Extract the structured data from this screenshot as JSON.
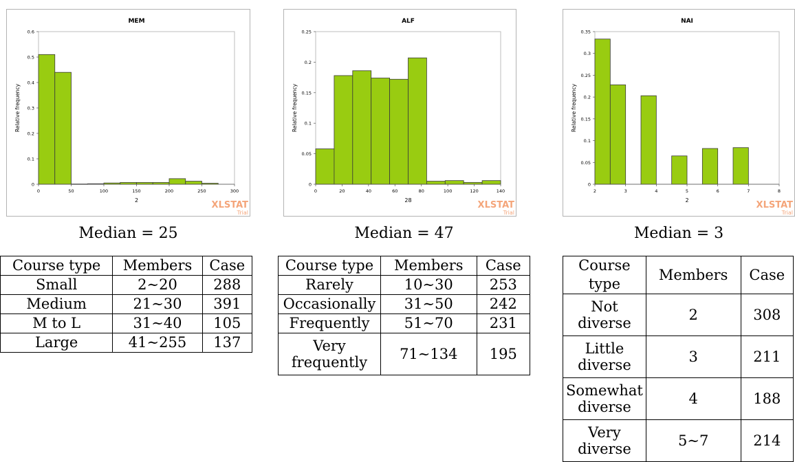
{
  "watermark": {
    "brand": "XLSTAT",
    "sub": "Trial"
  },
  "bar_fill": "#99cc11",
  "bar_stroke": "#3a3a3a",
  "watermark_color": "#f4a57a",
  "chart_data": [
    {
      "type": "bar",
      "title": "MEM",
      "xlabel": "2",
      "ylabel": "Relative frequency",
      "xlim": [
        0,
        300
      ],
      "ylim": [
        0,
        0.6
      ],
      "xticks": [
        "0",
        "50",
        "100",
        "150",
        "200",
        "250",
        "300"
      ],
      "yticks": [
        "0",
        "0.1",
        "0.2",
        "0.3",
        "0.4",
        "0.5",
        "0.6"
      ],
      "bins": [
        {
          "x0": 0,
          "x1": 25,
          "value": 0.51
        },
        {
          "x0": 25,
          "x1": 50,
          "value": 0.44
        },
        {
          "x0": 50,
          "x1": 75,
          "value": 0.001
        },
        {
          "x0": 75,
          "x1": 100,
          "value": 0.002
        },
        {
          "x0": 100,
          "x1": 125,
          "value": 0.005
        },
        {
          "x0": 125,
          "x1": 150,
          "value": 0.007
        },
        {
          "x0": 150,
          "x1": 175,
          "value": 0.007
        },
        {
          "x0": 175,
          "x1": 200,
          "value": 0.007
        },
        {
          "x0": 200,
          "x1": 225,
          "value": 0.022
        },
        {
          "x0": 225,
          "x1": 250,
          "value": 0.012
        },
        {
          "x0": 250,
          "x1": 275,
          "value": 0.004
        }
      ]
    },
    {
      "type": "bar",
      "title": "ALF",
      "xlabel": "28",
      "ylabel": "Relative frequency",
      "xlim": [
        0,
        140
      ],
      "ylim": [
        0,
        0.25
      ],
      "xticks": [
        "0",
        "20",
        "40",
        "60",
        "80",
        "100",
        "120",
        "140"
      ],
      "yticks": [
        "0",
        "0.05",
        "0.1",
        "0.15",
        "0.2",
        "0.25"
      ],
      "bins": [
        {
          "x0": 0,
          "x1": 14,
          "value": 0.058
        },
        {
          "x0": 14,
          "x1": 28,
          "value": 0.178
        },
        {
          "x0": 28,
          "x1": 42,
          "value": 0.186
        },
        {
          "x0": 42,
          "x1": 56,
          "value": 0.174
        },
        {
          "x0": 56,
          "x1": 70,
          "value": 0.172
        },
        {
          "x0": 70,
          "x1": 84,
          "value": 0.207
        },
        {
          "x0": 84,
          "x1": 98,
          "value": 0.005
        },
        {
          "x0": 98,
          "x1": 112,
          "value": 0.006
        },
        {
          "x0": 112,
          "x1": 126,
          "value": 0.003
        },
        {
          "x0": 126,
          "x1": 140,
          "value": 0.006
        }
      ]
    },
    {
      "type": "bar",
      "title": "NAI",
      "xlabel": "2",
      "ylabel": "Relative frequency",
      "xlim": [
        2,
        8
      ],
      "ylim": [
        0,
        0.35
      ],
      "xticks": [
        "2",
        "3",
        "4",
        "5",
        "6",
        "7",
        "8"
      ],
      "yticks": [
        "0",
        "0.05",
        "0.1",
        "0.15",
        "0.2",
        "0.25",
        "0.3",
        "0.35"
      ],
      "bins": [
        {
          "x0": 2.0,
          "x1": 2.5,
          "value": 0.333
        },
        {
          "x0": 2.5,
          "x1": 3.0,
          "value": 0.228
        },
        {
          "x0": 3.5,
          "x1": 4.0,
          "value": 0.203
        },
        {
          "x0": 4.5,
          "x1": 5.0,
          "value": 0.065
        },
        {
          "x0": 5.5,
          "x1": 6.0,
          "value": 0.082
        },
        {
          "x0": 6.5,
          "x1": 7.0,
          "value": 0.084
        }
      ]
    }
  ],
  "panels": [
    {
      "median": "Median = 25",
      "headers": [
        "Course type",
        "Members",
        "Case"
      ],
      "rows": [
        [
          "Small",
          "2∼20",
          "288"
        ],
        [
          "Medium",
          "21∼30",
          "391"
        ],
        [
          "M to L",
          "31∼40",
          "105"
        ],
        [
          "Large",
          "41∼255",
          "137"
        ]
      ]
    },
    {
      "median": "Median = 47",
      "headers": [
        "Course type",
        "Members",
        "Case"
      ],
      "rows": [
        [
          "Rarely",
          "10∼30",
          "253"
        ],
        [
          "Occasionally",
          "31∼50",
          "242"
        ],
        [
          "Frequently",
          "51∼70",
          "231"
        ],
        [
          "Very frequently",
          "71∼134",
          "195"
        ]
      ]
    },
    {
      "median": "Median = 3",
      "headers": [
        "Course type",
        "Members",
        "Case"
      ],
      "rows": [
        [
          "Not diverse",
          "2",
          "308"
        ],
        [
          "Little diverse",
          "3",
          "211"
        ],
        [
          "Somewhat diverse",
          "4",
          "188"
        ],
        [
          "Very diverse",
          "5∼7",
          "214"
        ]
      ]
    }
  ]
}
